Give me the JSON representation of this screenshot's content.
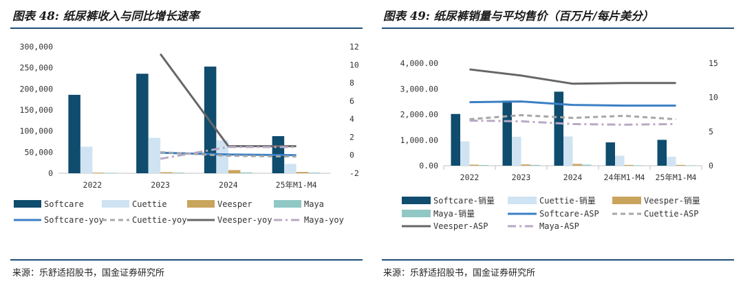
{
  "left": {
    "title": "图表 48: 纸尿裤收入与同比增长速率",
    "source": "来源：乐舒适招股书，国金证券研究所"
  },
  "right": {
    "title": "图表 49: 纸尿裤销量与平均售价（百万片/每片美分）",
    "source": "来源：乐舒适招股书，国金证券研究所"
  },
  "colors": {
    "softcare": "#0f4c6e",
    "cuettie": "#cfe3f2",
    "veesper": "#c9a45c",
    "maya": "#8fc8c4",
    "softcare_line": "#3a7fc4",
    "cuettie_line": "#a6a6a6",
    "veesper_line": "#666666",
    "maya_line": "#b8a9c4",
    "rule": "#1f4e79"
  },
  "chart_data": [
    {
      "type": "bar",
      "categories": [
        "2022",
        "2023",
        "2024",
        "25年M1-M4"
      ],
      "ylim": [
        0,
        300000
      ],
      "y_ticks": [
        "0",
        "50,000",
        "100,000",
        "150,000",
        "200,000",
        "250,000",
        "300,000"
      ],
      "y2lim": [
        -2,
        12
      ],
      "y2_ticks": [
        "-2",
        "0",
        "2",
        "4",
        "6",
        "8",
        "10",
        "12"
      ],
      "series": [
        {
          "name": "Softcare",
          "values": [
            186000,
            236000,
            253000,
            88000
          ]
        },
        {
          "name": "Cuettie",
          "values": [
            63000,
            84000,
            78000,
            22000
          ]
        },
        {
          "name": "Veesper",
          "values": [
            1500,
            2500,
            7500,
            3000
          ]
        },
        {
          "name": "Maya",
          "values": [
            1000,
            1500,
            2000,
            1500
          ]
        }
      ],
      "line_series": [
        {
          "name": "Softcare-yoy",
          "values": [
            null,
            0.27,
            0.07,
            0.0
          ]
        },
        {
          "name": "Cuettie-yoy",
          "values": [
            null,
            0.33,
            -0.07,
            -0.15
          ]
        },
        {
          "name": "Veesper-yoy",
          "values": [
            null,
            11.2,
            1.0,
            1.0
          ]
        },
        {
          "name": "Maya-yoy",
          "values": [
            null,
            -0.4,
            0.9,
            0.9
          ]
        }
      ]
    },
    {
      "type": "bar",
      "categories": [
        "2022",
        "2023",
        "2024",
        "24年M1-M4",
        "25年M1-M4"
      ],
      "ylim": [
        0,
        4000
      ],
      "y_ticks": [
        "0.00",
        "1,000.00",
        "2,000.00",
        "3,000.00",
        "4,000.00"
      ],
      "y2lim": [
        0,
        15
      ],
      "y2_ticks": [
        "0",
        "5",
        "10",
        "15"
      ],
      "series": [
        {
          "name": "Softcare-销量",
          "values": [
            2020,
            2540,
            2890,
            910,
            1010
          ]
        },
        {
          "name": "Cuettie-销量",
          "values": [
            950,
            1130,
            1140,
            390,
            350
          ]
        },
        {
          "name": "Veesper-销量",
          "values": [
            40,
            50,
            70,
            30,
            30
          ]
        },
        {
          "name": "Maya-销量",
          "values": [
            25,
            30,
            40,
            15,
            15
          ]
        }
      ],
      "line_series": [
        {
          "name": "Softcare-ASP",
          "values": [
            9.3,
            9.4,
            8.9,
            8.8,
            8.8
          ]
        },
        {
          "name": "Cuettie-ASP",
          "values": [
            6.8,
            7.4,
            7.0,
            7.3,
            6.8
          ]
        },
        {
          "name": "Veesper-ASP",
          "values": [
            14.1,
            13.2,
            12.0,
            12.1,
            12.1
          ]
        },
        {
          "name": "Maya-ASP",
          "values": [
            6.6,
            6.5,
            6.1,
            6.0,
            6.1
          ]
        }
      ]
    }
  ]
}
